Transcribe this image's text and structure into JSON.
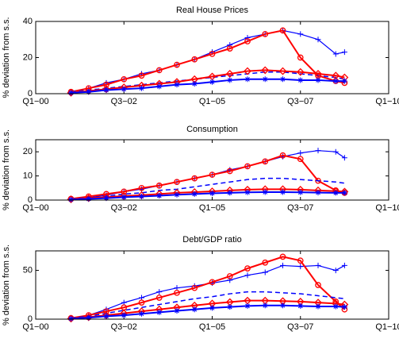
{
  "chart_data": [
    {
      "type": "line",
      "title": "Real House Prices",
      "y_label": "% deviation from s.s.",
      "x": [
        2001,
        2001.5,
        2002,
        2002.5,
        2003,
        2003.5,
        2004,
        2004.5,
        2005,
        2005.5,
        2006,
        2006.5,
        2007,
        2007.5,
        2008,
        2008.5,
        2008.75
      ],
      "xlim": [
        2000,
        2010
      ],
      "xticks": [
        {
          "value": 2000,
          "label": "Q1−00"
        },
        {
          "value": 2002.5,
          "label": "Q3−02"
        },
        {
          "value": 2005,
          "label": "Q1−05"
        },
        {
          "value": 2007.5,
          "label": "Q3−07"
        },
        {
          "value": 2010,
          "label": "Q1−10"
        }
      ],
      "ylim": [
        0,
        40
      ],
      "yticks": [
        0,
        20,
        40
      ],
      "grid": false,
      "series": [
        {
          "color": "#0000ff",
          "marker": "plus",
          "dash": false,
          "values": [
            1,
            3,
            6,
            8,
            11,
            13,
            16,
            19,
            23,
            27,
            31,
            33,
            35,
            33,
            30,
            22,
            23
          ]
        },
        {
          "color": "#ff0000",
          "marker": "circle",
          "dash": false,
          "values": [
            1,
            3,
            5,
            8,
            10,
            13,
            16,
            19,
            22,
            25,
            29,
            33,
            35,
            20,
            10,
            7,
            6
          ]
        },
        {
          "color": "#0000ff",
          "marker": "none",
          "dash": true,
          "values": [
            1,
            2,
            3,
            4,
            5,
            6,
            7,
            8,
            9,
            10,
            11,
            12,
            12,
            11,
            10,
            9,
            8
          ]
        },
        {
          "color": "#ff0000",
          "marker": "diamond",
          "dash": false,
          "values": [
            0.5,
            1.5,
            2.5,
            3.5,
            4.5,
            5.5,
            6.5,
            8,
            9.5,
            11,
            12.5,
            13,
            12.5,
            12,
            11,
            10,
            9
          ]
        },
        {
          "color": "#0000ff",
          "marker": "star",
          "dash": false,
          "values": [
            0.5,
            1,
            2,
            2.5,
            3,
            4,
            5,
            5.5,
            6.5,
            7.5,
            8,
            8,
            8,
            7.5,
            7.5,
            7,
            7
          ]
        }
      ]
    },
    {
      "type": "line",
      "title": "Consumption",
      "y_label": "% deviation from s.s.",
      "x": [
        2001,
        2001.5,
        2002,
        2002.5,
        2003,
        2003.5,
        2004,
        2004.5,
        2005,
        2005.5,
        2006,
        2006.5,
        2007,
        2007.5,
        2008,
        2008.5,
        2008.75
      ],
      "xlim": [
        2000,
        2010
      ],
      "xticks": [
        {
          "value": 2000,
          "label": "Q1−00"
        },
        {
          "value": 2002.5,
          "label": "Q3−02"
        },
        {
          "value": 2005,
          "label": "Q1−05"
        },
        {
          "value": 2007.5,
          "label": "Q3−07"
        },
        {
          "value": 2010,
          "label": "Q1−10"
        }
      ],
      "ylim": [
        0,
        25
      ],
      "yticks": [
        0,
        10,
        20
      ],
      "grid": false,
      "series": [
        {
          "color": "#0000ff",
          "marker": "plus",
          "dash": false,
          "values": [
            0.5,
            1,
            2,
            3.5,
            4.5,
            6,
            7.5,
            9,
            10.5,
            12.5,
            14,
            16,
            18,
            19.5,
            20.5,
            20,
            17.5
          ]
        },
        {
          "color": "#ff0000",
          "marker": "circle",
          "dash": false,
          "values": [
            0.5,
            1.5,
            2.5,
            3.5,
            5,
            6,
            7.5,
            9,
            10.5,
            12,
            14,
            16,
            18.5,
            17,
            8,
            4,
            3
          ]
        },
        {
          "color": "#0000ff",
          "marker": "none",
          "dash": true,
          "values": [
            0.5,
            1,
            1.5,
            2.5,
            3,
            4,
            4.5,
            5.5,
            6.5,
            7.5,
            8.5,
            9,
            9,
            8.5,
            8,
            7.5,
            7
          ]
        },
        {
          "color": "#ff0000",
          "marker": "diamond",
          "dash": false,
          "values": [
            0.3,
            0.8,
            1.2,
            1.7,
            2,
            2.5,
            3,
            3.3,
            3.6,
            4,
            4.3,
            4.5,
            4.5,
            4.3,
            4,
            3.7,
            3.5
          ]
        },
        {
          "color": "#0000ff",
          "marker": "star",
          "dash": false,
          "values": [
            0.2,
            0.5,
            0.8,
            1.2,
            1.5,
            1.8,
            2.2,
            2.5,
            2.8,
            3,
            3.2,
            3.3,
            3.3,
            3.2,
            3.1,
            3,
            3
          ]
        }
      ]
    },
    {
      "type": "line",
      "title": "Debt/GDP ratio",
      "y_label": "% deviation from s.s.",
      "x": [
        2001,
        2001.5,
        2002,
        2002.5,
        2003,
        2003.5,
        2004,
        2004.5,
        2005,
        2005.5,
        2006,
        2006.5,
        2007,
        2007.5,
        2008,
        2008.5,
        2008.75
      ],
      "xlim": [
        2000,
        2010
      ],
      "xticks": [
        {
          "value": 2000,
          "label": "Q1−00"
        },
        {
          "value": 2002.5,
          "label": "Q3−02"
        },
        {
          "value": 2005,
          "label": "Q1−05"
        },
        {
          "value": 2007.5,
          "label": "Q3−07"
        },
        {
          "value": 2010,
          "label": "Q1−10"
        }
      ],
      "ylim": [
        0,
        70
      ],
      "yticks": [
        0,
        50
      ],
      "grid": false,
      "series": [
        {
          "color": "#0000ff",
          "marker": "plus",
          "dash": false,
          "values": [
            1,
            4,
            10,
            17,
            22,
            28,
            32,
            34,
            37,
            40,
            45,
            48,
            55,
            54,
            55,
            50,
            55
          ]
        },
        {
          "color": "#ff0000",
          "marker": "circle",
          "dash": false,
          "values": [
            1,
            4,
            8,
            12,
            17,
            22,
            27,
            32,
            38,
            44,
            52,
            58,
            64,
            60,
            35,
            18,
            10
          ]
        },
        {
          "color": "#0000ff",
          "marker": "none",
          "dash": true,
          "values": [
            1,
            3,
            6,
            9,
            12,
            15,
            18,
            21,
            23,
            26,
            28,
            28,
            27,
            26,
            24,
            22,
            21
          ]
        },
        {
          "color": "#ff0000",
          "marker": "diamond",
          "dash": false,
          "values": [
            0.5,
            2,
            4,
            6,
            8,
            10,
            12,
            14,
            16,
            17.5,
            19,
            19,
            18.5,
            18,
            17,
            16,
            15
          ]
        },
        {
          "color": "#0000ff",
          "marker": "star",
          "dash": false,
          "values": [
            0.5,
            1.5,
            3,
            4,
            5.5,
            7,
            8.5,
            10,
            11.5,
            12.5,
            13.5,
            14,
            14,
            13.5,
            13,
            13,
            12.5
          ]
        }
      ]
    }
  ]
}
